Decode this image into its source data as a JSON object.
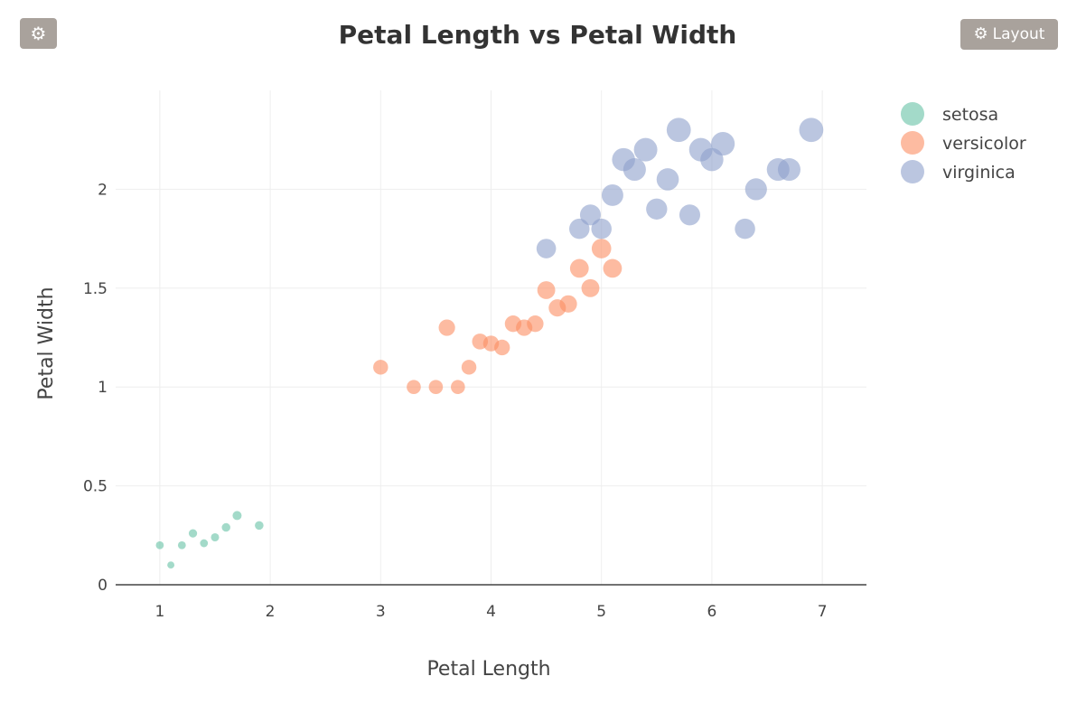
{
  "toolbar": {
    "settings_icon": "gear-icon",
    "layout_icon": "gear-icon",
    "layout_label": "Layout",
    "button_color": "#a9a29c"
  },
  "chart_data": {
    "type": "scatter",
    "title": "Petal Length vs Petal Width",
    "xlabel": "Petal Length",
    "ylabel": "Petal Width",
    "xlim": [
      0.6,
      7.4
    ],
    "ylim": [
      0,
      2.5
    ],
    "xticks": [
      1,
      2,
      3,
      4,
      5,
      6,
      7
    ],
    "yticks": [
      0,
      0.5,
      1,
      1.5,
      2
    ],
    "grid": true,
    "legend_position": "top-right",
    "marker_size_encodes": "Petal Width",
    "series": [
      {
        "name": "setosa",
        "color": "#66c2a5",
        "points": [
          [
            1.0,
            0.2
          ],
          [
            1.1,
            0.1
          ],
          [
            1.2,
            0.2
          ],
          [
            1.3,
            0.26
          ],
          [
            1.4,
            0.21
          ],
          [
            1.5,
            0.24
          ],
          [
            1.6,
            0.29
          ],
          [
            1.7,
            0.35
          ],
          [
            1.9,
            0.3
          ]
        ]
      },
      {
        "name": "versicolor",
        "color": "#fc8d62",
        "points": [
          [
            3.0,
            1.1
          ],
          [
            3.3,
            1.0
          ],
          [
            3.5,
            1.0
          ],
          [
            3.6,
            1.3
          ],
          [
            3.7,
            1.0
          ],
          [
            3.8,
            1.1
          ],
          [
            3.9,
            1.23
          ],
          [
            4.0,
            1.22
          ],
          [
            4.1,
            1.2
          ],
          [
            4.2,
            1.32
          ],
          [
            4.3,
            1.3
          ],
          [
            4.4,
            1.32
          ],
          [
            4.5,
            1.49
          ],
          [
            4.6,
            1.4
          ],
          [
            4.7,
            1.42
          ],
          [
            4.8,
            1.6
          ],
          [
            4.9,
            1.5
          ],
          [
            5.0,
            1.7
          ],
          [
            5.1,
            1.6
          ]
        ]
      },
      {
        "name": "virginica",
        "color": "#8da0cb",
        "points": [
          [
            4.5,
            1.7
          ],
          [
            4.8,
            1.8
          ],
          [
            4.9,
            1.87
          ],
          [
            5.0,
            1.8
          ],
          [
            5.1,
            1.97
          ],
          [
            5.2,
            2.15
          ],
          [
            5.3,
            2.1
          ],
          [
            5.4,
            2.2
          ],
          [
            5.5,
            1.9
          ],
          [
            5.6,
            2.05
          ],
          [
            5.7,
            2.3
          ],
          [
            5.8,
            1.87
          ],
          [
            5.9,
            2.2
          ],
          [
            6.0,
            2.15
          ],
          [
            6.1,
            2.23
          ],
          [
            6.3,
            1.8
          ],
          [
            6.4,
            2.0
          ],
          [
            6.6,
            2.1
          ],
          [
            6.7,
            2.1
          ],
          [
            6.9,
            2.3
          ]
        ]
      }
    ]
  }
}
